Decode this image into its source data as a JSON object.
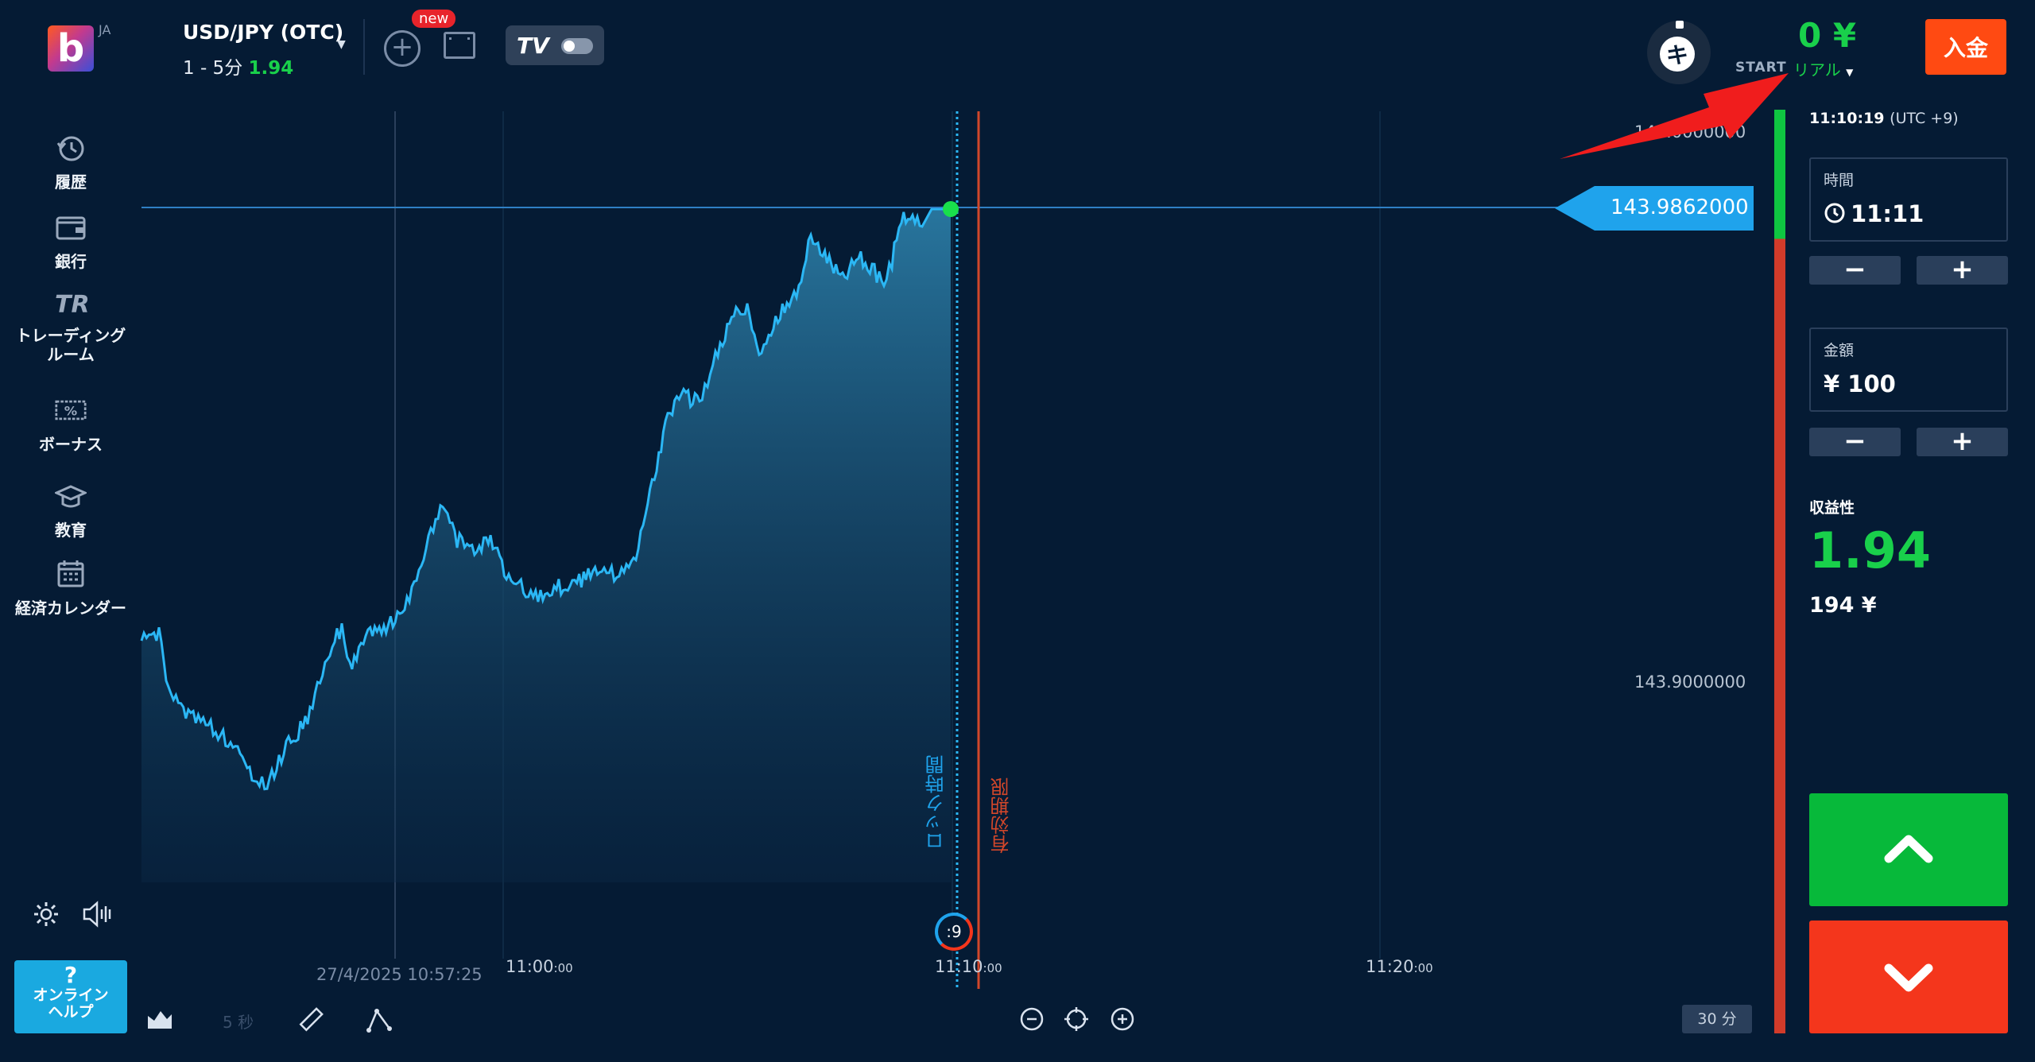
{
  "header": {
    "logo_letter": "b",
    "language": "JA",
    "asset_name": "USD/JPY (OTC)",
    "asset_timeframe": "1 - 5分",
    "asset_payout": "1.94",
    "new_badge": "new",
    "balance": "0 ¥",
    "account_start": "START",
    "account_type": "リアル",
    "deposit_label": "入金",
    "avatar_letter": "キ"
  },
  "sidebar": {
    "items": [
      {
        "label": "履歴",
        "icon": "history-icon"
      },
      {
        "label": "銀行",
        "icon": "wallet-icon"
      },
      {
        "label": "トレーディング\nルーム",
        "icon": "trading-room-icon"
      },
      {
        "label": "ボーナス",
        "icon": "bonus-icon"
      },
      {
        "label": "教育",
        "icon": "education-icon"
      },
      {
        "label": "経済カレンダー",
        "icon": "calendar-icon"
      }
    ],
    "help_q": "?",
    "help_label": "オンライン\nヘルプ"
  },
  "right_panel": {
    "clock": "11:10:19",
    "timezone": "(UTC +9)",
    "time_label": "時間",
    "time_value": "11:11",
    "amount_label": "金額",
    "amount_value": "¥ 100",
    "minus": "−",
    "plus": "+",
    "profit_label": "収益性",
    "profit_value": "1.94",
    "profit_amount": "194 ¥"
  },
  "chart_data": {
    "type": "area",
    "current_price": "143.9862000",
    "price_labels": [
      "144.0000000",
      "143.9000000"
    ],
    "time_labels": [
      {
        "main": "11:00",
        "small": ":00"
      },
      {
        "main": "11:10",
        "small": ":00"
      },
      {
        "main": "11:20",
        "small": ":00"
      }
    ],
    "crosshair_time": "27/4/2025 10:57:25",
    "lock_label": "ロック時間",
    "expiry_label": "有効期限",
    "timer": ":9",
    "timeframe_button": "30 分",
    "candle_interval": "5 秒",
    "colors": {
      "line": "#2bb7f5",
      "expiry": "#d2472a",
      "up": "#07b93a",
      "down": "#f4361c"
    }
  }
}
